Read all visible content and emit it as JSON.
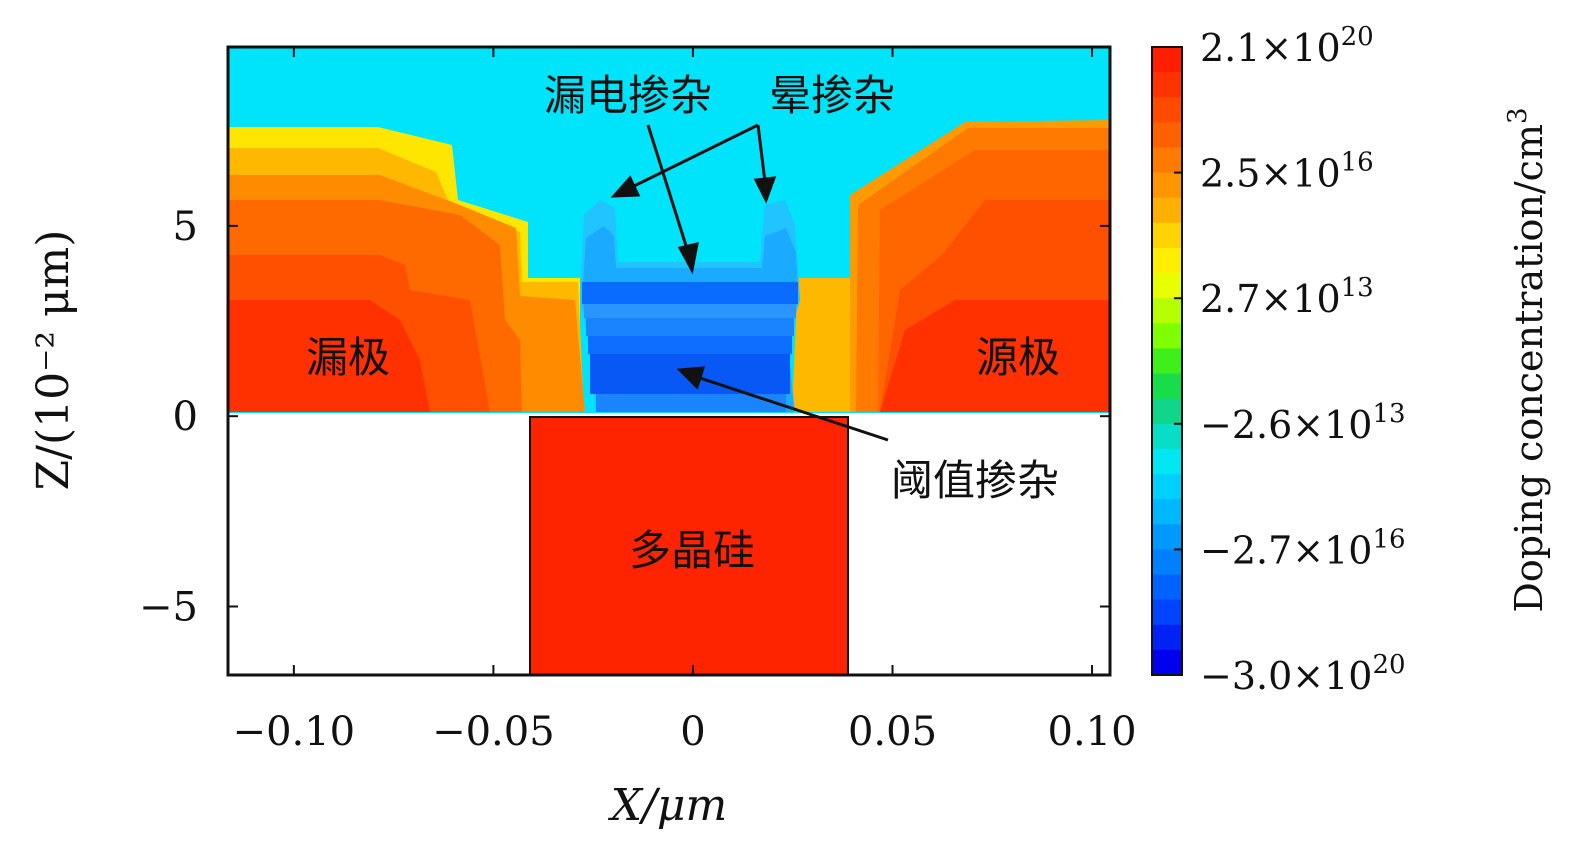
{
  "chart_data": {
    "type": "heatmap",
    "title": "",
    "xlabel": "X/μm",
    "ylabel": "Z/(10⁻² μm)",
    "xlim": [
      -0.1165,
      0.1045
    ],
    "ylim": [
      -6.8,
      9.7
    ],
    "x_ticks": [
      {
        "value": -0.1,
        "label": "−0.10"
      },
      {
        "value": -0.05,
        "label": "−0.05"
      },
      {
        "value": 0,
        "label": "0"
      },
      {
        "value": 0.05,
        "label": "0.05"
      },
      {
        "value": 0.1,
        "label": "0.10"
      }
    ],
    "y_ticks": [
      {
        "value": 5,
        "label": "5"
      },
      {
        "value": 0,
        "label": "0"
      },
      {
        "value": -5,
        "label": "−5"
      }
    ],
    "colorbar": {
      "label": "Doping concentration/cm",
      "label_sup": "3",
      "ticks": [
        {
          "mantissa": "2.1",
          "exp": "20"
        },
        {
          "mantissa": "2.5",
          "exp": "16"
        },
        {
          "mantissa": "2.7",
          "exp": "13"
        },
        {
          "mantissa": "−2.6",
          "exp": "13"
        },
        {
          "mantissa": "−2.7",
          "exp": "16"
        },
        {
          "mantissa": "−3.0",
          "exp": "20"
        }
      ],
      "colors": [
        "#ff1e00",
        "#ff3300",
        "#ff4a00",
        "#ff6000",
        "#ff7a00",
        "#ff9500",
        "#ffb000",
        "#ffd400",
        "#ffee00",
        "#e8ff00",
        "#b5ff00",
        "#7fff00",
        "#3fef1a",
        "#19dc4a",
        "#10d58a",
        "#08ddc8",
        "#00e6f2",
        "#00d0ff",
        "#00b8ff",
        "#0099ff",
        "#0080ff",
        "#0062ff",
        "#0044ff",
        "#0022f5",
        "#0000ee"
      ]
    },
    "region_labels": {
      "drain": "漏极",
      "source": "源极",
      "poly": "多晶硅"
    },
    "annotations": {
      "leak_doping": "漏电掺杂",
      "halo_doping": "晕掺杂",
      "threshold_doping": "阈值掺杂"
    },
    "regions": [
      {
        "name": "poly",
        "x": [
          -0.04,
          0.04
        ],
        "z": [
          -6.8,
          0
        ],
        "color": "#ff2200"
      },
      {
        "name": "oxide-background",
        "color": "#00e5ff"
      },
      {
        "name": "drain-outer",
        "color": "#ff7000"
      },
      {
        "name": "drain-core",
        "color": "#ff3300"
      },
      {
        "name": "source-outer",
        "color": "#ff7000"
      },
      {
        "name": "source-core",
        "color": "#ff3300"
      },
      {
        "name": "channel",
        "color": "#0090ff"
      }
    ]
  }
}
